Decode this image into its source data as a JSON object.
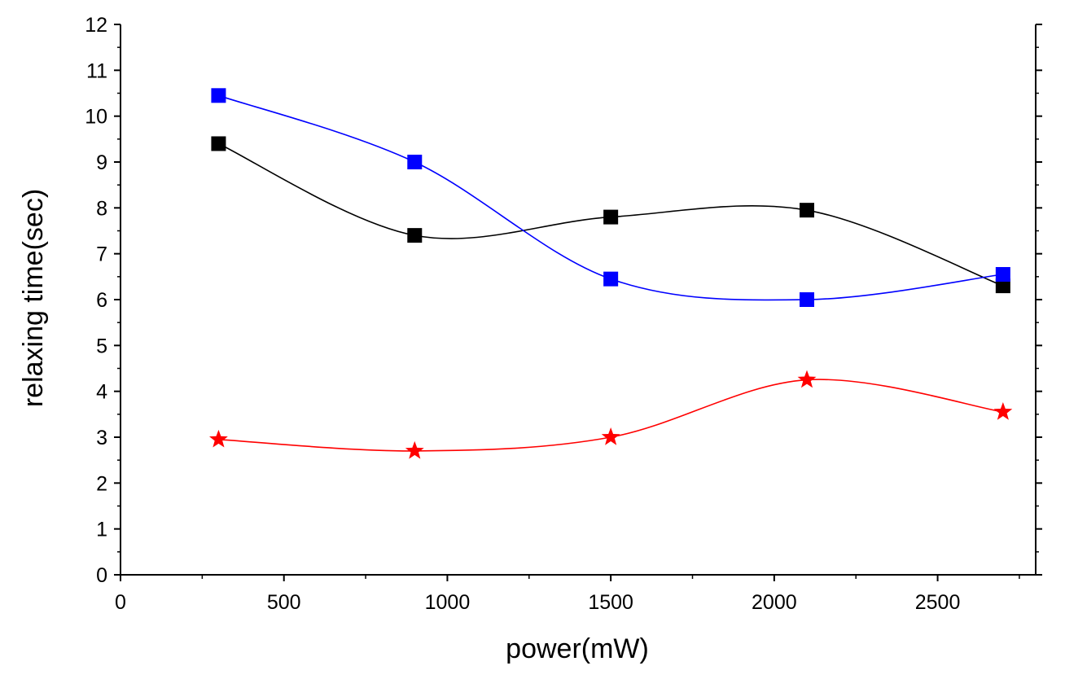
{
  "chart_data": {
    "type": "line",
    "title": "",
    "xlabel": "power(mW)",
    "ylabel": "relaxing time(sec)",
    "xlim": [
      0,
      2800
    ],
    "ylim": [
      0,
      12
    ],
    "xticks": [
      0,
      500,
      1000,
      1500,
      2000,
      2500
    ],
    "yticks": [
      0,
      1,
      2,
      3,
      4,
      5,
      6,
      7,
      8,
      9,
      10,
      11,
      12
    ],
    "grid": false,
    "legend": "none",
    "x": [
      300,
      900,
      1500,
      2100,
      2700
    ],
    "series": [
      {
        "marker": "square",
        "color": "#000000",
        "values": [
          9.4,
          7.4,
          7.8,
          7.95,
          6.3
        ]
      },
      {
        "marker": "square",
        "color": "#0000ff",
        "values": [
          10.45,
          9.0,
          6.45,
          6.0,
          6.55
        ]
      },
      {
        "marker": "star",
        "color": "#ff0000",
        "values": [
          2.95,
          2.7,
          3.0,
          4.25,
          3.55
        ]
      }
    ]
  }
}
